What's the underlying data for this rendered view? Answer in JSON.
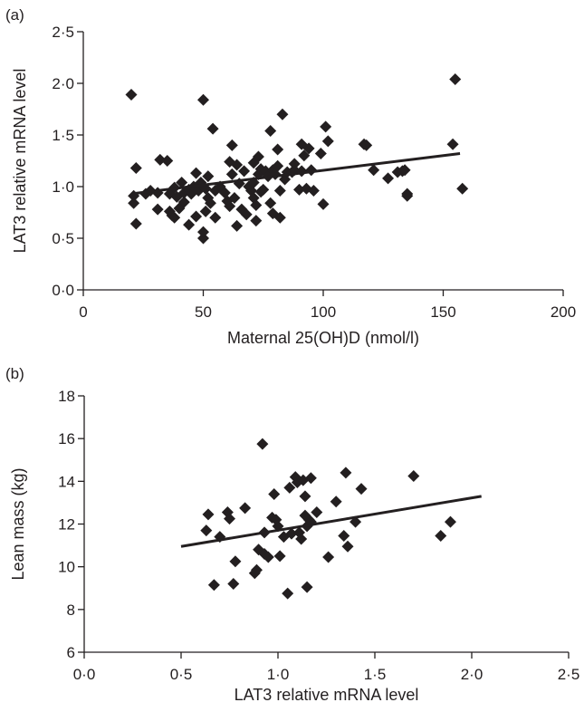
{
  "colors": {
    "ink": "#231f20",
    "marker": "#231f20"
  },
  "chart_data": [
    {
      "type": "scatter",
      "panel": "(a)",
      "xlabel": "Maternal 25(OH)D (nmol/l)",
      "ylabel": "LAT3 relative mRNA level",
      "xlim": [
        0,
        200
      ],
      "ylim": [
        0,
        2.5
      ],
      "xticks": [
        0,
        50,
        100,
        150,
        200
      ],
      "xtick_labels": [
        "0",
        "50",
        "100",
        "150",
        "200"
      ],
      "yticks": [
        0,
        0.5,
        1.0,
        1.5,
        2.0,
        2.5
      ],
      "ytick_labels": [
        "0·0",
        "0·5",
        "1·0",
        "1·5",
        "2·0",
        "2·5"
      ],
      "grid": false,
      "trendline": {
        "x": [
          20,
          157
        ],
        "y": [
          0.93,
          1.32
        ]
      },
      "points": [
        [
          20,
          1.89
        ],
        [
          21,
          0.84
        ],
        [
          21,
          0.91
        ],
        [
          22,
          0.64
        ],
        [
          22,
          1.18
        ],
        [
          26,
          0.93
        ],
        [
          28,
          0.96
        ],
        [
          31,
          0.78
        ],
        [
          31,
          0.94
        ],
        [
          32,
          1.26
        ],
        [
          35,
          1.25
        ],
        [
          36,
          0.93
        ],
        [
          36,
          0.76
        ],
        [
          37,
          0.72
        ],
        [
          38,
          0.99
        ],
        [
          38,
          0.7
        ],
        [
          39,
          0.9
        ],
        [
          40,
          0.79
        ],
        [
          41,
          1.04
        ],
        [
          42,
          0.94
        ],
        [
          42,
          0.85
        ],
        [
          44,
          0.97
        ],
        [
          44,
          0.63
        ],
        [
          45,
          0.93
        ],
        [
          46,
          1.0
        ],
        [
          47,
          1.13
        ],
        [
          47,
          0.71
        ],
        [
          48,
          0.96
        ],
        [
          49,
          1.04
        ],
        [
          50,
          0.5
        ],
        [
          50,
          0.56
        ],
        [
          50,
          1.84
        ],
        [
          51,
          0.76
        ],
        [
          51,
          0.98
        ],
        [
          52,
          1.1
        ],
        [
          52,
          0.89
        ],
        [
          53,
          0.84
        ],
        [
          54,
          1.56
        ],
        [
          55,
          0.7
        ],
        [
          55,
          0.96
        ],
        [
          57,
          1.0
        ],
        [
          59,
          0.94
        ],
        [
          60,
          0.86
        ],
        [
          61,
          1.24
        ],
        [
          61,
          0.81
        ],
        [
          62,
          1.4
        ],
        [
          62,
          1.12
        ],
        [
          63,
          0.89
        ],
        [
          64,
          0.62
        ],
        [
          64,
          1.21
        ],
        [
          65,
          1.03
        ],
        [
          66,
          0.78
        ],
        [
          67,
          1.15
        ],
        [
          68,
          0.73
        ],
        [
          69,
          1.0
        ],
        [
          70,
          0.96
        ],
        [
          71,
          1.23
        ],
        [
          71,
          1.04
        ],
        [
          71,
          0.89
        ],
        [
          72,
          0.82
        ],
        [
          72,
          0.67
        ],
        [
          73,
          1.12
        ],
        [
          73,
          1.29
        ],
        [
          74,
          0.95
        ],
        [
          74,
          1.17
        ],
        [
          75,
          0.97
        ],
        [
          76,
          1.15
        ],
        [
          77,
          1.1
        ],
        [
          78,
          1.54
        ],
        [
          78,
          0.84
        ],
        [
          79,
          0.74
        ],
        [
          79,
          1.16
        ],
        [
          80,
          1.12
        ],
        [
          81,
          1.2
        ],
        [
          81,
          1.36
        ],
        [
          82,
          0.7
        ],
        [
          82,
          0.96
        ],
        [
          83,
          1.7
        ],
        [
          84,
          1.07
        ],
        [
          85,
          1.14
        ],
        [
          87,
          1.14
        ],
        [
          88,
          1.16
        ],
        [
          88,
          1.22
        ],
        [
          90,
          0.97
        ],
        [
          91,
          1.15
        ],
        [
          91,
          1.41
        ],
        [
          92,
          1.3
        ],
        [
          93,
          0.98
        ],
        [
          94,
          1.37
        ],
        [
          95,
          1.16
        ],
        [
          96,
          0.96
        ],
        [
          99,
          1.32
        ],
        [
          100,
          0.83
        ],
        [
          101,
          1.58
        ],
        [
          102,
          1.44
        ],
        [
          117,
          1.41
        ],
        [
          118,
          1.4
        ],
        [
          121,
          1.16
        ],
        [
          127,
          1.08
        ],
        [
          131,
          1.14
        ],
        [
          133,
          1.15
        ],
        [
          134,
          1.16
        ],
        [
          135,
          0.93
        ],
        [
          135,
          0.91
        ],
        [
          154,
          1.41
        ],
        [
          155,
          2.04
        ],
        [
          158,
          0.98
        ]
      ]
    },
    {
      "type": "scatter",
      "panel": "(b)",
      "xlabel": "LAT3 relative mRNA level",
      "ylabel": "Lean mass (kg)",
      "xlim": [
        0,
        2.5
      ],
      "ylim": [
        6,
        18
      ],
      "xticks": [
        0,
        0.5,
        1.0,
        1.5,
        2.0,
        2.5
      ],
      "xtick_labels": [
        "0·0",
        "0·5",
        "1·0",
        "1·5",
        "2·0",
        "2·5"
      ],
      "yticks": [
        6,
        8,
        10,
        12,
        14,
        16,
        18
      ],
      "ytick_labels": [
        "6",
        "8",
        "10",
        "12",
        "14",
        "16",
        "18"
      ],
      "grid": false,
      "trendline": {
        "x": [
          0.5,
          2.05
        ],
        "y": [
          10.95,
          13.3
        ]
      },
      "points": [
        [
          0.63,
          11.7
        ],
        [
          0.64,
          12.45
        ],
        [
          0.67,
          9.15
        ],
        [
          0.7,
          11.4
        ],
        [
          0.74,
          12.55
        ],
        [
          0.75,
          12.25
        ],
        [
          0.77,
          9.2
        ],
        [
          0.78,
          10.25
        ],
        [
          0.83,
          12.75
        ],
        [
          0.88,
          9.7
        ],
        [
          0.89,
          9.85
        ],
        [
          0.9,
          10.8
        ],
        [
          0.92,
          15.75
        ],
        [
          0.93,
          11.6
        ],
        [
          0.93,
          10.6
        ],
        [
          0.95,
          10.45
        ],
        [
          0.97,
          12.3
        ],
        [
          0.98,
          13.4
        ],
        [
          0.99,
          12.2
        ],
        [
          1.0,
          11.9
        ],
        [
          1.01,
          10.5
        ],
        [
          1.03,
          11.4
        ],
        [
          1.05,
          8.75
        ],
        [
          1.06,
          13.7
        ],
        [
          1.07,
          11.55
        ],
        [
          1.09,
          14.2
        ],
        [
          1.1,
          13.95
        ],
        [
          1.11,
          11.6
        ],
        [
          1.12,
          11.3
        ],
        [
          1.13,
          14.05
        ],
        [
          1.14,
          13.3
        ],
        [
          1.14,
          12.4
        ],
        [
          1.15,
          9.05
        ],
        [
          1.15,
          11.9
        ],
        [
          1.16,
          12.2
        ],
        [
          1.17,
          14.15
        ],
        [
          1.17,
          12.1
        ],
        [
          1.2,
          12.55
        ],
        [
          1.26,
          10.45
        ],
        [
          1.3,
          13.05
        ],
        [
          1.34,
          11.45
        ],
        [
          1.35,
          14.4
        ],
        [
          1.36,
          10.95
        ],
        [
          1.4,
          12.1
        ],
        [
          1.43,
          13.65
        ],
        [
          1.7,
          14.25
        ],
        [
          1.84,
          11.45
        ],
        [
          1.89,
          12.1
        ]
      ]
    }
  ]
}
